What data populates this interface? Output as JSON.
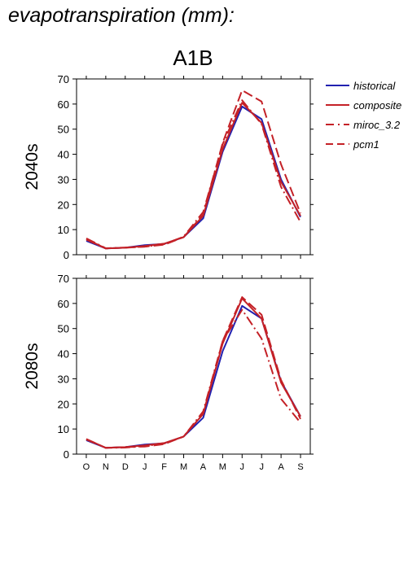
{
  "heading": "evapotranspiration (mm):",
  "scenario": "A1B",
  "legend": [
    {
      "label": "historical",
      "color": "#2121b0",
      "dash": "solid"
    },
    {
      "label": "composite",
      "color": "#c42127",
      "dash": "solid"
    },
    {
      "label": "miroc_3.2",
      "color": "#c42127",
      "dash": "dashdot"
    },
    {
      "label": "pcm1",
      "color": "#c42127",
      "dash": "dashed"
    }
  ],
  "chart_data": [
    {
      "type": "line",
      "ylabel": "2040s",
      "categories": [
        "O",
        "N",
        "D",
        "J",
        "F",
        "M",
        "A",
        "M",
        "J",
        "J",
        "A",
        "S"
      ],
      "ylim": [
        0,
        70
      ],
      "yticks": [
        0,
        10,
        20,
        30,
        40,
        50,
        60,
        70
      ],
      "series": [
        {
          "name": "historical",
          "values": [
            5.5,
            2.5,
            2.8,
            3.8,
            4.3,
            7.0,
            14.5,
            41.0,
            59.0,
            54.0,
            30.0,
            15.0
          ]
        },
        {
          "name": "composite",
          "values": [
            6.2,
            2.5,
            2.8,
            3.5,
            4.4,
            7.0,
            15.5,
            42.0,
            60.5,
            52.5,
            29.0,
            15.5
          ]
        },
        {
          "name": "miroc_3.2",
          "values": [
            6.5,
            2.6,
            2.9,
            3.2,
            4.2,
            7.2,
            17.0,
            44.0,
            61.5,
            52.0,
            27.0,
            13.0
          ]
        },
        {
          "name": "pcm1",
          "values": [
            6.0,
            2.5,
            2.8,
            3.2,
            4.0,
            7.0,
            16.0,
            44.5,
            65.5,
            61.0,
            36.0,
            16.5
          ]
        }
      ]
    },
    {
      "type": "line",
      "ylabel": "2080s",
      "categories": [
        "O",
        "N",
        "D",
        "J",
        "F",
        "M",
        "A",
        "M",
        "J",
        "J",
        "A",
        "S"
      ],
      "ylim": [
        0,
        70
      ],
      "yticks": [
        0,
        10,
        20,
        30,
        40,
        50,
        60,
        70
      ],
      "series": [
        {
          "name": "historical",
          "values": [
            5.5,
            2.5,
            2.8,
            3.8,
            4.3,
            7.0,
            14.5,
            41.0,
            59.0,
            54.0,
            29.0,
            15.0
          ]
        },
        {
          "name": "composite",
          "values": [
            6.0,
            2.5,
            2.8,
            3.5,
            4.4,
            7.0,
            16.0,
            44.0,
            62.0,
            54.0,
            28.5,
            15.0
          ]
        },
        {
          "name": "miroc_3.2",
          "values": [
            5.8,
            2.5,
            2.6,
            3.2,
            4.2,
            7.0,
            17.0,
            45.0,
            57.5,
            46.0,
            22.0,
            12.5
          ]
        },
        {
          "name": "pcm1",
          "values": [
            6.0,
            2.5,
            2.8,
            3.0,
            4.0,
            7.0,
            16.0,
            45.0,
            62.5,
            55.5,
            29.5,
            14.0
          ]
        }
      ]
    }
  ]
}
